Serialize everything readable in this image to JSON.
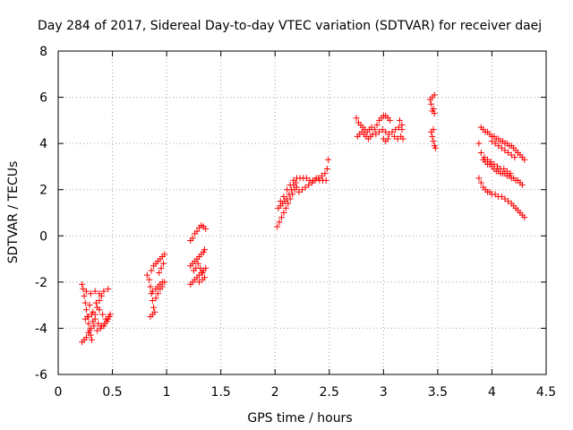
{
  "chart_data": {
    "type": "scatter",
    "title": "Day 284 of 2017, Sidereal Day-to-day VTEC variation (SDTVAR) for receiver daej",
    "xlabel": "GPS time / hours",
    "ylabel": "SDTVAR / TECUs",
    "xlim": [
      0,
      4.5
    ],
    "ylim": [
      -6,
      8
    ],
    "xticks": [
      0,
      0.5,
      1,
      1.5,
      2,
      2.5,
      3,
      3.5,
      4,
      4.5
    ],
    "yticks": [
      -6,
      -4,
      -2,
      0,
      2,
      4,
      6,
      8
    ],
    "xtick_labels": [
      "0",
      "0.5",
      "1",
      "1.5",
      "2",
      "2.5",
      "3",
      "3.5",
      "4",
      "4.5"
    ],
    "ytick_labels": [
      "-6",
      "-4",
      "-2",
      "0",
      "2",
      "4",
      "6",
      "8"
    ],
    "grid": true,
    "marker": "+",
    "marker_color": "#ff0000",
    "series": [
      {
        "name": "SDTVAR",
        "points": [
          [
            0.22,
            -2.1
          ],
          [
            0.23,
            -2.3
          ],
          [
            0.24,
            -2.6
          ],
          [
            0.25,
            -2.9
          ],
          [
            0.26,
            -3.2
          ],
          [
            0.27,
            -3.5
          ],
          [
            0.28,
            -3.8
          ],
          [
            0.29,
            -4.1
          ],
          [
            0.3,
            -4.3
          ],
          [
            0.31,
            -4.5
          ],
          [
            0.22,
            -4.6
          ],
          [
            0.24,
            -4.5
          ],
          [
            0.26,
            -4.4
          ],
          [
            0.28,
            -4.2
          ],
          [
            0.3,
            -4.0
          ],
          [
            0.32,
            -3.7
          ],
          [
            0.34,
            -3.4
          ],
          [
            0.36,
            -3.1
          ],
          [
            0.38,
            -2.8
          ],
          [
            0.4,
            -2.6
          ],
          [
            0.25,
            -3.6
          ],
          [
            0.28,
            -3.5
          ],
          [
            0.31,
            -3.4
          ],
          [
            0.34,
            -3.6
          ],
          [
            0.37,
            -3.8
          ],
          [
            0.4,
            -3.9
          ],
          [
            0.43,
            -3.8
          ],
          [
            0.46,
            -3.6
          ],
          [
            0.48,
            -3.4
          ],
          [
            0.26,
            -2.4
          ],
          [
            0.3,
            -2.5
          ],
          [
            0.34,
            -2.4
          ],
          [
            0.38,
            -2.5
          ],
          [
            0.42,
            -2.4
          ],
          [
            0.46,
            -2.3
          ],
          [
            0.35,
            -2.9
          ],
          [
            0.38,
            -3.2
          ],
          [
            0.41,
            -3.4
          ],
          [
            0.44,
            -3.6
          ],
          [
            0.33,
            -3.9
          ],
          [
            0.36,
            -4.1
          ],
          [
            0.39,
            -4.0
          ],
          [
            0.42,
            -3.9
          ],
          [
            0.45,
            -3.7
          ],
          [
            0.47,
            -3.5
          ],
          [
            0.29,
            -3.0
          ],
          [
            0.32,
            -3.3
          ],
          [
            0.82,
            -1.7
          ],
          [
            0.84,
            -1.9
          ],
          [
            0.85,
            -2.2
          ],
          [
            0.86,
            -2.5
          ],
          [
            0.87,
            -2.8
          ],
          [
            0.88,
            -3.1
          ],
          [
            0.89,
            -3.3
          ],
          [
            0.85,
            -3.5
          ],
          [
            0.87,
            -3.4
          ],
          [
            0.86,
            -1.5
          ],
          [
            0.88,
            -1.3
          ],
          [
            0.9,
            -1.2
          ],
          [
            0.92,
            -1.1
          ],
          [
            0.94,
            -1.0
          ],
          [
            0.96,
            -0.9
          ],
          [
            0.98,
            -0.8
          ],
          [
            0.87,
            -2.4
          ],
          [
            0.9,
            -2.3
          ],
          [
            0.92,
            -2.2
          ],
          [
            0.94,
            -2.1
          ],
          [
            0.96,
            -2.0
          ],
          [
            0.98,
            -2.0
          ],
          [
            0.9,
            -2.7
          ],
          [
            0.92,
            -2.5
          ],
          [
            0.94,
            -2.3
          ],
          [
            0.96,
            -2.2
          ],
          [
            0.93,
            -1.6
          ],
          [
            0.95,
            -1.4
          ],
          [
            0.97,
            -1.2
          ],
          [
            1.22,
            -0.2
          ],
          [
            1.24,
            -0.1
          ],
          [
            1.26,
            0.1
          ],
          [
            1.28,
            0.2
          ],
          [
            1.3,
            0.35
          ],
          [
            1.32,
            0.45
          ],
          [
            1.34,
            0.4
          ],
          [
            1.36,
            0.3
          ],
          [
            1.22,
            -1.3
          ],
          [
            1.24,
            -1.2
          ],
          [
            1.26,
            -1.1
          ],
          [
            1.28,
            -1.0
          ],
          [
            1.3,
            -0.9
          ],
          [
            1.32,
            -0.8
          ],
          [
            1.34,
            -0.7
          ],
          [
            1.22,
            -2.1
          ],
          [
            1.24,
            -2.0
          ],
          [
            1.26,
            -1.9
          ],
          [
            1.28,
            -1.8
          ],
          [
            1.3,
            -1.7
          ],
          [
            1.32,
            -1.6
          ],
          [
            1.34,
            -1.5
          ],
          [
            1.36,
            -1.4
          ],
          [
            1.25,
            -1.5
          ],
          [
            1.27,
            -1.4
          ],
          [
            1.29,
            -1.2
          ],
          [
            1.31,
            -1.4
          ],
          [
            1.33,
            -1.6
          ],
          [
            1.35,
            -1.8
          ],
          [
            1.3,
            -2.0
          ],
          [
            1.33,
            -1.9
          ],
          [
            1.35,
            -0.6
          ],
          [
            2.02,
            0.4
          ],
          [
            2.04,
            0.6
          ],
          [
            2.06,
            0.8
          ],
          [
            2.08,
            1.0
          ],
          [
            2.1,
            1.2
          ],
          [
            2.12,
            1.4
          ],
          [
            2.14,
            1.6
          ],
          [
            2.16,
            1.8
          ],
          [
            2.18,
            2.0
          ],
          [
            2.2,
            2.1
          ],
          [
            2.03,
            1.2
          ],
          [
            2.05,
            1.3
          ],
          [
            2.07,
            1.4
          ],
          [
            2.09,
            1.5
          ],
          [
            2.11,
            1.6
          ],
          [
            2.13,
            1.8
          ],
          [
            2.15,
            2.0
          ],
          [
            2.17,
            2.2
          ],
          [
            2.19,
            2.3
          ],
          [
            2.05,
            1.5
          ],
          [
            2.08,
            1.7
          ],
          [
            2.11,
            2.0
          ],
          [
            2.14,
            2.2
          ],
          [
            2.17,
            2.4
          ],
          [
            2.2,
            2.5
          ],
          [
            2.23,
            2.5
          ],
          [
            2.26,
            2.5
          ],
          [
            2.29,
            2.5
          ],
          [
            2.32,
            2.4
          ],
          [
            2.35,
            2.4
          ],
          [
            2.38,
            2.5
          ],
          [
            2.41,
            2.4
          ],
          [
            2.44,
            2.4
          ],
          [
            2.47,
            2.4
          ],
          [
            2.22,
            1.9
          ],
          [
            2.25,
            2.0
          ],
          [
            2.28,
            2.1
          ],
          [
            2.31,
            2.2
          ],
          [
            2.34,
            2.3
          ],
          [
            2.37,
            2.4
          ],
          [
            2.4,
            2.5
          ],
          [
            2.43,
            2.6
          ],
          [
            2.46,
            2.7
          ],
          [
            2.48,
            2.9
          ],
          [
            2.49,
            3.3
          ],
          [
            2.75,
            5.1
          ],
          [
            2.77,
            4.9
          ],
          [
            2.79,
            4.8
          ],
          [
            2.81,
            4.7
          ],
          [
            2.83,
            4.6
          ],
          [
            2.85,
            4.5
          ],
          [
            2.87,
            4.6
          ],
          [
            2.89,
            4.7
          ],
          [
            2.76,
            4.3
          ],
          [
            2.78,
            4.4
          ],
          [
            2.8,
            4.5
          ],
          [
            2.82,
            4.4
          ],
          [
            2.84,
            4.3
          ],
          [
            2.86,
            4.2
          ],
          [
            2.88,
            4.3
          ],
          [
            2.9,
            4.4
          ],
          [
            2.92,
            4.6
          ],
          [
            2.94,
            4.8
          ],
          [
            2.96,
            5.0
          ],
          [
            2.98,
            5.1
          ],
          [
            3.0,
            5.2
          ],
          [
            3.02,
            5.2
          ],
          [
            3.04,
            5.1
          ],
          [
            3.06,
            5.0
          ],
          [
            2.93,
            4.4
          ],
          [
            2.96,
            4.5
          ],
          [
            2.99,
            4.6
          ],
          [
            3.02,
            4.5
          ],
          [
            3.05,
            4.4
          ],
          [
            3.08,
            4.5
          ],
          [
            3.11,
            4.6
          ],
          [
            3.14,
            4.7
          ],
          [
            3.17,
            4.6
          ],
          [
            3.0,
            4.2
          ],
          [
            3.02,
            4.1
          ],
          [
            3.04,
            4.2
          ],
          [
            3.1,
            4.3
          ],
          [
            3.13,
            4.2
          ],
          [
            3.16,
            4.3
          ],
          [
            3.18,
            4.2
          ],
          [
            3.15,
            5.0
          ],
          [
            3.17,
            4.8
          ],
          [
            3.43,
            5.9
          ],
          [
            3.45,
            6.0
          ],
          [
            3.47,
            6.1
          ],
          [
            3.44,
            5.7
          ],
          [
            3.46,
            5.5
          ],
          [
            3.47,
            5.3
          ],
          [
            3.45,
            5.4
          ],
          [
            3.44,
            4.5
          ],
          [
            3.45,
            4.3
          ],
          [
            3.46,
            4.1
          ],
          [
            3.47,
            3.9
          ],
          [
            3.48,
            3.8
          ],
          [
            3.46,
            4.6
          ],
          [
            3.9,
            4.7
          ],
          [
            3.92,
            4.6
          ],
          [
            3.94,
            4.5
          ],
          [
            3.96,
            4.5
          ],
          [
            3.98,
            4.4
          ],
          [
            4.0,
            4.3
          ],
          [
            4.02,
            4.3
          ],
          [
            4.04,
            4.2
          ],
          [
            4.06,
            4.2
          ],
          [
            4.08,
            4.1
          ],
          [
            4.1,
            4.1
          ],
          [
            4.12,
            4.0
          ],
          [
            4.14,
            4.0
          ],
          [
            4.16,
            3.9
          ],
          [
            4.18,
            3.9
          ],
          [
            4.2,
            3.8
          ],
          [
            4.22,
            3.7
          ],
          [
            4.24,
            3.6
          ],
          [
            4.26,
            3.5
          ],
          [
            4.28,
            3.4
          ],
          [
            4.3,
            3.3
          ],
          [
            3.88,
            4.0
          ],
          [
            3.9,
            3.6
          ],
          [
            3.92,
            3.3
          ],
          [
            3.94,
            3.2
          ],
          [
            3.96,
            3.1
          ],
          [
            3.98,
            3.1
          ],
          [
            4.0,
            3.0
          ],
          [
            4.02,
            2.9
          ],
          [
            4.04,
            2.8
          ],
          [
            4.06,
            2.8
          ],
          [
            4.08,
            2.7
          ],
          [
            4.1,
            2.7
          ],
          [
            4.12,
            2.7
          ],
          [
            4.14,
            2.6
          ],
          [
            4.16,
            2.6
          ],
          [
            4.18,
            2.5
          ],
          [
            4.2,
            2.5
          ],
          [
            4.22,
            2.4
          ],
          [
            4.24,
            2.4
          ],
          [
            4.26,
            2.3
          ],
          [
            4.28,
            2.2
          ],
          [
            3.93,
            3.4
          ],
          [
            3.96,
            3.3
          ],
          [
            3.99,
            3.2
          ],
          [
            4.02,
            3.1
          ],
          [
            4.05,
            3.0
          ],
          [
            4.08,
            2.9
          ],
          [
            4.11,
            2.9
          ],
          [
            4.14,
            2.8
          ],
          [
            4.17,
            2.7
          ],
          [
            3.88,
            2.5
          ],
          [
            3.9,
            2.3
          ],
          [
            3.92,
            2.1
          ],
          [
            3.94,
            2.0
          ],
          [
            3.96,
            1.9
          ],
          [
            3.98,
            1.9
          ],
          [
            4.0,
            1.8
          ],
          [
            4.03,
            1.8
          ],
          [
            4.06,
            1.7
          ],
          [
            4.09,
            1.7
          ],
          [
            4.12,
            1.6
          ],
          [
            4.15,
            1.5
          ],
          [
            4.18,
            1.4
          ],
          [
            4.2,
            1.3
          ],
          [
            4.22,
            1.2
          ],
          [
            4.24,
            1.1
          ],
          [
            4.26,
            1.0
          ],
          [
            4.28,
            0.9
          ],
          [
            4.3,
            0.8
          ],
          [
            4.0,
            4.1
          ],
          [
            4.03,
            4.0
          ],
          [
            4.06,
            3.9
          ],
          [
            4.09,
            3.8
          ],
          [
            4.12,
            3.7
          ],
          [
            4.15,
            3.6
          ],
          [
            4.18,
            3.5
          ],
          [
            4.21,
            3.4
          ]
        ]
      }
    ]
  }
}
